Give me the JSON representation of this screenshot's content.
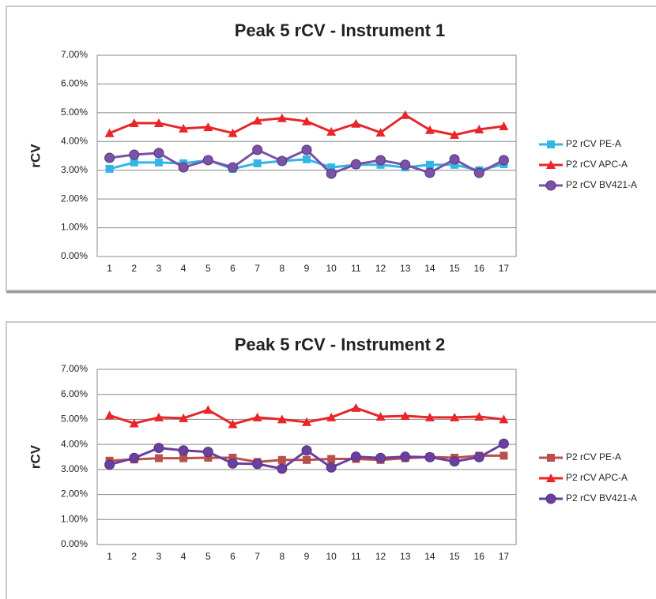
{
  "chart_data": [
    {
      "type": "line",
      "title": "Peak 5 rCV - Instrument 1",
      "y_label": "rCV",
      "categories": [
        "1",
        "2",
        "3",
        "4",
        "5",
        "6",
        "7",
        "8",
        "9",
        "10",
        "11",
        "12",
        "13",
        "14",
        "15",
        "16",
        "17"
      ],
      "ylim": [
        0,
        7
      ],
      "yticks": [
        {
          "value": 0,
          "label": "0.00%"
        },
        {
          "value": 1,
          "label": "1.00%"
        },
        {
          "value": 2,
          "label": "2.00%"
        },
        {
          "value": 3,
          "label": "3.00%"
        },
        {
          "value": 4,
          "label": "4.00%"
        },
        {
          "value": 5,
          "label": "5.00%"
        },
        {
          "value": 6,
          "label": "6.00%"
        },
        {
          "value": 7,
          "label": "7.00%"
        }
      ],
      "grid": true,
      "legend": "right",
      "series": [
        {
          "name": "P2 rCV PE-A",
          "color": "#33b5e5",
          "marker": "square",
          "values": [
            3.05,
            3.27,
            3.27,
            3.24,
            3.35,
            3.05,
            3.24,
            3.32,
            3.38,
            3.1,
            3.19,
            3.19,
            3.1,
            3.19,
            3.19,
            3.0,
            3.21
          ]
        },
        {
          "name": "P2 rCV APC-A",
          "color": "#e8262a",
          "marker": "triangle",
          "values": [
            4.29,
            4.64,
            4.64,
            4.45,
            4.5,
            4.29,
            4.73,
            4.81,
            4.7,
            4.34,
            4.62,
            4.31,
            4.92,
            4.4,
            4.23,
            4.42,
            4.53
          ]
        },
        {
          "name": "P2 rCV BV421-A",
          "color": "#7b52a8",
          "marker": "circle",
          "values": [
            3.43,
            3.54,
            3.6,
            3.1,
            3.35,
            3.1,
            3.71,
            3.32,
            3.71,
            2.88,
            3.21,
            3.35,
            3.19,
            2.91,
            3.38,
            2.91,
            3.35
          ]
        }
      ]
    },
    {
      "type": "line",
      "title": "Peak 5 rCV - Instrument 2",
      "y_label": "rCV",
      "categories": [
        "1",
        "2",
        "3",
        "4",
        "5",
        "6",
        "7",
        "8",
        "9",
        "10",
        "11",
        "12",
        "13",
        "14",
        "15",
        "16",
        "17"
      ],
      "ylim": [
        0,
        7
      ],
      "yticks": [
        {
          "value": 0,
          "label": "0.00%"
        },
        {
          "value": 1,
          "label": "1.00%"
        },
        {
          "value": 2,
          "label": "2.00%"
        },
        {
          "value": 3,
          "label": "3.00%"
        },
        {
          "value": 4,
          "label": "4.00%"
        },
        {
          "value": 5,
          "label": "5.00%"
        },
        {
          "value": 6,
          "label": "6.00%"
        },
        {
          "value": 7,
          "label": "7.00%"
        }
      ],
      "grid": true,
      "legend": "right",
      "series": [
        {
          "name": "P2 rCV PE-A",
          "color": "#b8504b",
          "marker": "square",
          "values": [
            3.35,
            3.4,
            3.45,
            3.45,
            3.47,
            3.47,
            3.3,
            3.38,
            3.38,
            3.42,
            3.42,
            3.38,
            3.45,
            3.5,
            3.47,
            3.55,
            3.55
          ]
        },
        {
          "name": "P2 rCV APC-A",
          "color": "#e8262a",
          "marker": "triangle",
          "values": [
            5.16,
            4.84,
            5.08,
            5.05,
            5.38,
            4.81,
            5.08,
            5.0,
            4.89,
            5.08,
            5.46,
            5.11,
            5.14,
            5.08,
            5.08,
            5.11,
            5.0
          ]
        },
        {
          "name": "P2 rCV BV421-A",
          "color": "#6a3fa0",
          "marker": "circle",
          "values": [
            3.19,
            3.46,
            3.86,
            3.76,
            3.7,
            3.24,
            3.22,
            3.03,
            3.76,
            3.08,
            3.51,
            3.46,
            3.51,
            3.49,
            3.32,
            3.49,
            4.03
          ]
        }
      ]
    }
  ]
}
